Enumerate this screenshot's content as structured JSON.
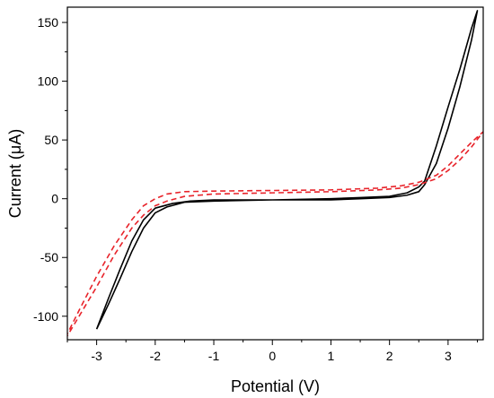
{
  "chart_data": {
    "type": "line",
    "title": "",
    "xlabel": "Potential (V)",
    "ylabel": "Current (μA)",
    "xlim": [
      -3.5,
      3.6
    ],
    "ylim": [
      -120,
      163
    ],
    "x_ticks": [
      -3,
      -2,
      -1,
      0,
      1,
      2,
      3
    ],
    "y_ticks": [
      -100,
      -50,
      0,
      50,
      100,
      150
    ],
    "grid": false,
    "legend": "none",
    "series": [
      {
        "color": "#000000",
        "line_style": "solid",
        "points": [
          [
            -3.0,
            -111
          ],
          [
            -2.8,
            -85
          ],
          [
            -2.6,
            -60
          ],
          [
            -2.4,
            -36
          ],
          [
            -2.2,
            -18
          ],
          [
            -2.0,
            -8
          ],
          [
            -1.7,
            -4
          ],
          [
            -1.4,
            -2
          ],
          [
            -1.0,
            -1
          ],
          [
            0.0,
            -1
          ],
          [
            1.0,
            0
          ],
          [
            1.5,
            1
          ],
          [
            2.0,
            2
          ],
          [
            2.3,
            5
          ],
          [
            2.5,
            10
          ],
          [
            2.6,
            15
          ],
          [
            2.8,
            45
          ],
          [
            3.0,
            78
          ],
          [
            3.2,
            110
          ],
          [
            3.4,
            145
          ],
          [
            3.5,
            160
          ],
          [
            3.4,
            135
          ],
          [
            3.2,
            95
          ],
          [
            3.0,
            60
          ],
          [
            2.8,
            30
          ],
          [
            2.6,
            12
          ],
          [
            2.5,
            6
          ],
          [
            2.3,
            3
          ],
          [
            2.0,
            1
          ],
          [
            1.5,
            0
          ],
          [
            1.0,
            -1
          ],
          [
            0.0,
            -1
          ],
          [
            -1.0,
            -2
          ],
          [
            -1.5,
            -3
          ],
          [
            -1.8,
            -7
          ],
          [
            -2.0,
            -12
          ],
          [
            -2.2,
            -25
          ],
          [
            -2.4,
            -45
          ],
          [
            -2.6,
            -68
          ],
          [
            -2.8,
            -90
          ],
          [
            -3.0,
            -111
          ]
        ]
      },
      {
        "color": "#e8232a",
        "line_style": "dashed",
        "points": [
          [
            -3.6,
            -125
          ],
          [
            -3.3,
            -95
          ],
          [
            -3.0,
            -66
          ],
          [
            -2.7,
            -40
          ],
          [
            -2.4,
            -18
          ],
          [
            -2.2,
            -6
          ],
          [
            -2.0,
            0
          ],
          [
            -1.8,
            4
          ],
          [
            -1.5,
            6
          ],
          [
            -1.0,
            6.5
          ],
          [
            0.0,
            7
          ],
          [
            1.0,
            7.5
          ],
          [
            1.8,
            9
          ],
          [
            2.2,
            11
          ],
          [
            2.5,
            14
          ],
          [
            2.8,
            20
          ],
          [
            3.0,
            28
          ],
          [
            3.2,
            38
          ],
          [
            3.4,
            48
          ],
          [
            3.6,
            57
          ],
          [
            3.4,
            44
          ],
          [
            3.2,
            33
          ],
          [
            3.0,
            24
          ],
          [
            2.8,
            17
          ],
          [
            2.5,
            12
          ],
          [
            2.2,
            9
          ],
          [
            1.8,
            7.5
          ],
          [
            1.0,
            6
          ],
          [
            0.0,
            5
          ],
          [
            -1.0,
            4
          ],
          [
            -1.5,
            2
          ],
          [
            -1.8,
            -2
          ],
          [
            -2.0,
            -6
          ],
          [
            -2.2,
            -14
          ],
          [
            -2.4,
            -25
          ],
          [
            -2.7,
            -48
          ],
          [
            -3.0,
            -75
          ],
          [
            -3.3,
            -100
          ],
          [
            -3.6,
            -125
          ]
        ]
      }
    ]
  }
}
